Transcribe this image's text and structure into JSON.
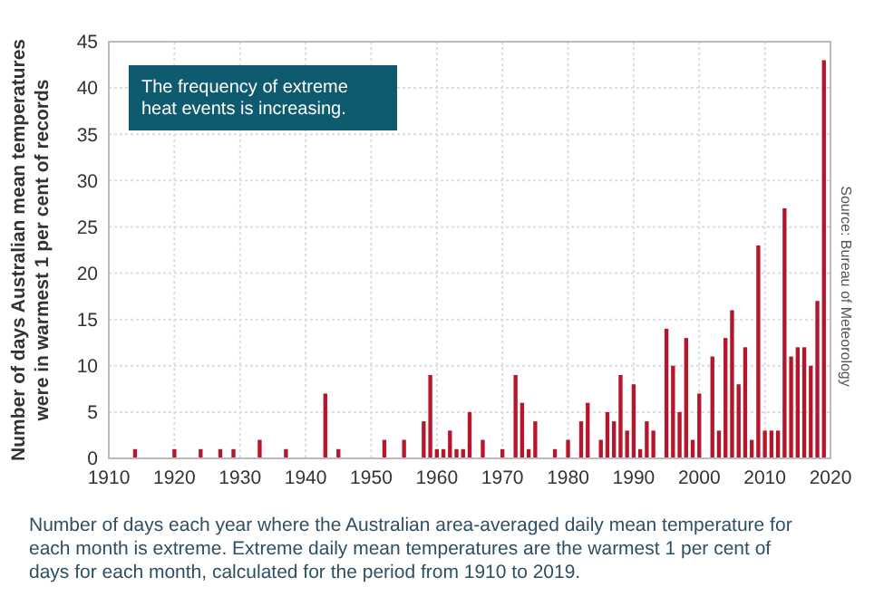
{
  "chart_data": {
    "type": "bar",
    "ylabel": "Number of days Australian mean temperatures\nwere in warmest 1 per cent of records",
    "x": [
      1914,
      1920,
      1924,
      1927,
      1929,
      1933,
      1937,
      1943,
      1945,
      1952,
      1955,
      1958,
      1959,
      1960,
      1961,
      1962,
      1963,
      1964,
      1965,
      1967,
      1970,
      1972,
      1973,
      1974,
      1975,
      1978,
      1980,
      1982,
      1983,
      1985,
      1986,
      1987,
      1988,
      1989,
      1990,
      1991,
      1992,
      1993,
      1995,
      1996,
      1997,
      1998,
      1999,
      2000,
      2002,
      2003,
      2004,
      2005,
      2006,
      2007,
      2008,
      2009,
      2010,
      2011,
      2012,
      2013,
      2014,
      2015,
      2016,
      2017,
      2018,
      2019
    ],
    "values": [
      1,
      1,
      1,
      1,
      1,
      2,
      1,
      7,
      1,
      2,
      2,
      4,
      9,
      1,
      1,
      3,
      1,
      1,
      5,
      2,
      1,
      9,
      6,
      1,
      4,
      1,
      2,
      4,
      6,
      2,
      5,
      4,
      9,
      3,
      8,
      1,
      4,
      3,
      14,
      10,
      5,
      13,
      2,
      7,
      11,
      3,
      13,
      16,
      8,
      12,
      2,
      23,
      3,
      3,
      3,
      27,
      11,
      12,
      12,
      10,
      17,
      43
    ],
    "color": "#b5162b",
    "xlim": [
      1910,
      2020
    ],
    "xticks": [
      1910,
      1920,
      1930,
      1940,
      1950,
      1960,
      1970,
      1980,
      1990,
      2000,
      2010,
      2020
    ],
    "ylim": [
      0,
      45
    ],
    "yticks": [
      0,
      5,
      10,
      15,
      20,
      25,
      30,
      35,
      40,
      45
    ],
    "grid": true,
    "annotations": [
      "The frequency of extreme heat events is increasing.",
      "Source: Bureau of Meteorology",
      "Number of days each year where the Australian area-averaged daily mean temperature for each month is extreme. Extreme daily mean temperatures are the warmest 1 per cent of days for each month, calculated for the period from 1910 to 2019."
    ]
  }
}
